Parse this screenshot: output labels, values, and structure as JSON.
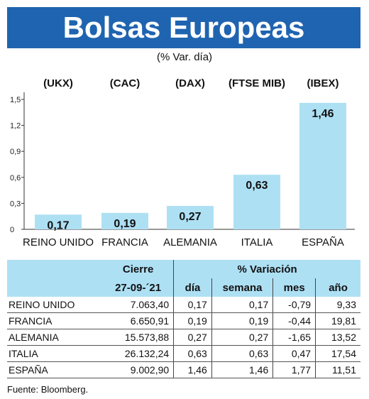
{
  "title": "Bolsas Europeas",
  "subtitle": "(% Var. día)",
  "chart_data": {
    "type": "bar",
    "indices": [
      "(UKX)",
      "(CAC)",
      "(DAX)",
      "(FTSE MIB)",
      "(IBEX)"
    ],
    "categories": [
      "REINO UNIDO",
      "FRANCIA",
      "ALEMANIA",
      "ITALIA",
      "ESPAÑA"
    ],
    "values": [
      0.17,
      0.19,
      0.27,
      0.63,
      1.46
    ],
    "value_labels": [
      "0,17",
      "0,19",
      "0,27",
      "0,63",
      "1,46"
    ],
    "ylim": [
      0,
      1.5
    ],
    "yticks": [
      0,
      0.3,
      0.6,
      0.9,
      1.2,
      1.5
    ],
    "ytick_labels": [
      "0",
      "0,3",
      "0,6",
      "0,9",
      "1,2",
      "1,5"
    ],
    "grid": false,
    "bar_color": "#aee0f4"
  },
  "table": {
    "header_cierre": "Cierre",
    "header_variacion": "% Variación",
    "date": "27-09-´21",
    "col_dia": "día",
    "col_semana": "semana",
    "col_mes": "mes",
    "col_ano": "año",
    "rows": [
      {
        "name": "REINO UNIDO",
        "cierre": "7.063,40",
        "dia": "0,17",
        "semana": "0,17",
        "mes": "-0,79",
        "ano": "9,33"
      },
      {
        "name": "FRANCIA",
        "cierre": "6.650,91",
        "dia": "0,19",
        "semana": "0,19",
        "mes": "-0,44",
        "ano": "19,81"
      },
      {
        "name": "ALEMANIA",
        "cierre": "15.573,88",
        "dia": "0,27",
        "semana": "0,27",
        "mes": "-1,65",
        "ano": "13,52"
      },
      {
        "name": "ITALIA",
        "cierre": "26.132,24",
        "dia": "0,63",
        "semana": "0,63",
        "mes": "0,47",
        "ano": "17,54"
      },
      {
        "name": "ESPAÑA",
        "cierre": "9.002,90",
        "dia": "1,46",
        "semana": "1,46",
        "mes": "1,77",
        "ano": "11,51"
      }
    ]
  },
  "source": "Fuente: Bloomberg.",
  "colors": {
    "title_bg": "#1f64b0",
    "header_bg": "#aee0f4"
  }
}
